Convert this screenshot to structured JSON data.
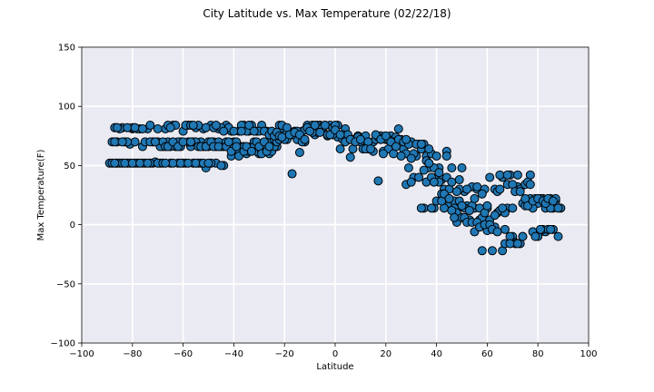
{
  "chart_data": {
    "type": "scatter",
    "title": "City Latitude vs. Max Temperature (02/22/18)",
    "xlabel": "Latitude",
    "ylabel": "Max Temperature(F)",
    "xlim": [
      -100,
      100
    ],
    "ylim": [
      -100,
      150
    ],
    "xticks": [
      -100,
      -80,
      -60,
      -40,
      -20,
      0,
      20,
      40,
      60,
      80,
      100
    ],
    "yticks": [
      -100,
      -50,
      0,
      50,
      100,
      150
    ],
    "grid": true,
    "legend": "none",
    "colors": {
      "marker_fill": "#1f77b4",
      "marker_edge": "#000000",
      "plot_background": "#eaeaf2",
      "grid": "#ffffff"
    },
    "points": [
      [
        -89,
        52
      ],
      [
        -88,
        70
      ],
      [
        -87,
        82
      ],
      [
        -86,
        52
      ],
      [
        -85,
        52
      ],
      [
        -84,
        82
      ],
      [
        -83,
        70
      ],
      [
        -82,
        52
      ],
      [
        -81,
        68
      ],
      [
        -80,
        81
      ],
      [
        -79,
        70
      ],
      [
        -78,
        52
      ],
      [
        -77,
        81
      ],
      [
        -76,
        66
      ],
      [
        -75,
        52
      ],
      [
        -74,
        81
      ],
      [
        -73,
        84
      ],
      [
        -72,
        52
      ],
      [
        -71,
        53
      ],
      [
        -70,
        70
      ],
      [
        -69,
        52
      ],
      [
        -68,
        66
      ],
      [
        -67,
        81
      ],
      [
        -66,
        70
      ],
      [
        -65,
        52
      ],
      [
        -64,
        84
      ],
      [
        -63,
        66
      ],
      [
        -62,
        52
      ],
      [
        -61,
        70
      ],
      [
        -60,
        79
      ],
      [
        -59,
        52
      ],
      [
        -58,
        84
      ],
      [
        -57,
        66
      ],
      [
        -56,
        70
      ],
      [
        -55,
        82
      ],
      [
        -54,
        52
      ],
      [
        -53,
        70
      ],
      [
        -52,
        81
      ],
      [
        -51,
        48
      ],
      [
        -50,
        66
      ],
      [
        -49,
        84
      ],
      [
        -48,
        70
      ],
      [
        -47,
        52
      ],
      [
        -46,
        81
      ],
      [
        -45,
        66
      ],
      [
        -44,
        50
      ],
      [
        -43,
        84
      ],
      [
        -42,
        66
      ],
      [
        -41,
        79
      ],
      [
        -40,
        70
      ],
      [
        -39,
        60
      ],
      [
        -38,
        79
      ],
      [
        -37,
        66
      ],
      [
        -36,
        84
      ],
      [
        -35,
        60
      ],
      [
        -34,
        79
      ],
      [
        -33,
        66
      ],
      [
        -32,
        70
      ],
      [
        -31,
        79
      ],
      [
        -30,
        60
      ],
      [
        -29,
        84
      ],
      [
        -28,
        66
      ],
      [
        -27,
        79
      ],
      [
        -26,
        60
      ],
      [
        -25,
        70
      ],
      [
        -24,
        72
      ],
      [
        -23,
        66
      ],
      [
        -22,
        84
      ],
      [
        -21,
        79
      ],
      [
        -20,
        75
      ],
      [
        -19,
        72
      ],
      [
        -18,
        78
      ],
      [
        -17,
        43
      ],
      [
        -16,
        79
      ],
      [
        -15,
        72
      ],
      [
        -14,
        61
      ],
      [
        -13,
        79
      ],
      [
        -12,
        70
      ],
      [
        -11,
        84
      ],
      [
        -10,
        79
      ],
      [
        -9,
        84
      ],
      [
        -8,
        76
      ],
      [
        -7,
        78
      ],
      [
        -6,
        84
      ],
      [
        -5,
        81
      ],
      [
        -4,
        84
      ],
      [
        -3,
        75
      ],
      [
        -2,
        84
      ],
      [
        -1,
        82
      ],
      [
        0,
        76
      ],
      [
        1,
        74
      ],
      [
        2,
        64
      ],
      [
        3,
        72
      ],
      [
        4,
        81
      ],
      [
        5,
        72
      ],
      [
        6,
        57
      ],
      [
        7,
        64
      ],
      [
        8,
        72
      ],
      [
        9,
        75
      ],
      [
        10,
        70
      ],
      [
        11,
        64
      ],
      [
        12,
        75
      ],
      [
        13,
        64
      ],
      [
        14,
        64
      ],
      [
        15,
        70
      ],
      [
        16,
        72
      ],
      [
        17,
        37
      ],
      [
        18,
        75
      ],
      [
        19,
        62
      ],
      [
        20,
        72
      ],
      [
        21,
        64
      ],
      [
        22,
        75
      ],
      [
        23,
        60
      ],
      [
        24,
        74
      ],
      [
        25,
        81
      ],
      [
        26,
        72
      ],
      [
        27,
        64
      ],
      [
        28,
        60
      ],
      [
        29,
        48
      ],
      [
        30,
        70
      ],
      [
        31,
        40
      ],
      [
        32,
        58
      ],
      [
        33,
        68
      ],
      [
        34,
        64
      ],
      [
        35,
        14
      ],
      [
        36,
        58
      ],
      [
        37,
        48
      ],
      [
        38,
        60
      ],
      [
        39,
        14
      ],
      [
        40,
        40
      ],
      [
        41,
        48
      ],
      [
        42,
        38
      ],
      [
        43,
        30
      ],
      [
        44,
        40
      ],
      [
        45,
        16
      ],
      [
        46,
        48
      ],
      [
        47,
        20
      ],
      [
        48,
        2
      ],
      [
        49,
        38
      ],
      [
        50,
        48
      ],
      [
        51,
        28
      ],
      [
        52,
        16
      ],
      [
        53,
        12
      ],
      [
        54,
        32
      ],
      [
        55,
        14
      ],
      [
        56,
        30
      ],
      [
        57,
        4
      ],
      [
        58,
        6
      ],
      [
        59,
        30
      ],
      [
        60,
        14
      ],
      [
        61,
        40
      ],
      [
        62,
        -2
      ],
      [
        63,
        30
      ],
      [
        64,
        10
      ],
      [
        65,
        12
      ],
      [
        66,
        40
      ],
      [
        67,
        -4
      ],
      [
        68,
        14
      ],
      [
        69,
        42
      ],
      [
        70,
        -10
      ],
      [
        71,
        -15
      ],
      [
        72,
        32
      ],
      [
        73,
        30
      ],
      [
        74,
        18
      ],
      [
        75,
        16
      ],
      [
        76,
        20
      ],
      [
        77,
        42
      ],
      [
        78,
        -6
      ],
      [
        79,
        20
      ],
      [
        80,
        18
      ],
      [
        81,
        -6
      ],
      [
        82,
        22
      ],
      [
        83,
        -6
      ],
      [
        84,
        16
      ],
      [
        85,
        22
      ],
      [
        86,
        14
      ],
      [
        87,
        20
      ],
      [
        88,
        -10
      ],
      [
        89,
        14
      ],
      [
        -10,
        80
      ],
      [
        -88,
        52
      ],
      [
        -86,
        70
      ],
      [
        -85,
        81
      ],
      [
        -84,
        52
      ],
      [
        -82,
        70
      ],
      [
        -81,
        52
      ],
      [
        -80,
        82
      ],
      [
        -79,
        52
      ],
      [
        -78,
        81
      ],
      [
        -76,
        52
      ],
      [
        -75,
        70
      ],
      [
        -73,
        52
      ],
      [
        -72,
        70
      ],
      [
        -70,
        52
      ],
      [
        -69,
        66
      ],
      [
        -68,
        70
      ],
      [
        -67,
        66
      ],
      [
        -66,
        84
      ],
      [
        -65,
        66
      ],
      [
        -64,
        52
      ],
      [
        -63,
        84
      ],
      [
        -62,
        70
      ],
      [
        -61,
        66
      ],
      [
        -60,
        52
      ],
      [
        -59,
        84
      ],
      [
        -58,
        70
      ],
      [
        -57,
        84
      ],
      [
        -56,
        52
      ],
      [
        -55,
        70
      ],
      [
        -54,
        84
      ],
      [
        -53,
        52
      ],
      [
        -52,
        66
      ],
      [
        -51,
        82
      ],
      [
        -50,
        70
      ],
      [
        -49,
        52
      ],
      [
        -48,
        82
      ],
      [
        -47,
        66
      ],
      [
        -46,
        70
      ],
      [
        -45,
        82
      ],
      [
        -44,
        66
      ],
      [
        -43,
        70
      ],
      [
        -42,
        82
      ],
      [
        -41,
        58
      ],
      [
        -40,
        66
      ],
      [
        -39,
        70
      ],
      [
        -38,
        62
      ],
      [
        -37,
        84
      ],
      [
        -36,
        66
      ],
      [
        -35,
        79
      ],
      [
        -34,
        62
      ],
      [
        -33,
        84
      ],
      [
        -32,
        66
      ],
      [
        -31,
        62
      ],
      [
        -30,
        79
      ],
      [
        -29,
        62
      ],
      [
        -28,
        79
      ],
      [
        -27,
        66
      ],
      [
        -26,
        76
      ],
      [
        -25,
        62
      ],
      [
        -24,
        66
      ],
      [
        -23,
        70
      ],
      [
        -22,
        72
      ],
      [
        -21,
        84
      ],
      [
        -20,
        72
      ],
      [
        -19,
        78
      ],
      [
        -17,
        76
      ],
      [
        -15,
        79
      ],
      [
        -13,
        70
      ],
      [
        -12,
        80
      ],
      [
        -11,
        82
      ],
      [
        -9,
        78
      ],
      [
        -7,
        84
      ],
      [
        -5,
        82
      ],
      [
        -3,
        76
      ],
      [
        -1,
        76
      ],
      [
        1,
        84
      ],
      [
        3,
        76
      ],
      [
        5,
        76
      ],
      [
        7,
        72
      ],
      [
        9,
        74
      ],
      [
        11,
        64
      ],
      [
        13,
        70
      ],
      [
        15,
        62
      ],
      [
        17,
        74
      ],
      [
        19,
        60
      ],
      [
        21,
        72
      ],
      [
        23,
        70
      ],
      [
        25,
        72
      ],
      [
        27,
        70
      ],
      [
        28,
        34
      ],
      [
        29,
        68
      ],
      [
        30,
        36
      ],
      [
        31,
        60
      ],
      [
        33,
        40
      ],
      [
        34,
        14
      ],
      [
        35,
        68
      ],
      [
        36,
        36
      ],
      [
        37,
        64
      ],
      [
        38,
        14
      ],
      [
        39,
        48
      ],
      [
        40,
        20
      ],
      [
        41,
        36
      ],
      [
        42,
        26
      ],
      [
        43,
        14
      ],
      [
        44,
        62
      ],
      [
        45,
        30
      ],
      [
        46,
        36
      ],
      [
        47,
        14
      ],
      [
        48,
        10
      ],
      [
        49,
        30
      ],
      [
        50,
        6
      ],
      [
        51,
        14
      ],
      [
        52,
        30
      ],
      [
        53,
        4
      ],
      [
        54,
        16
      ],
      [
        55,
        -6
      ],
      [
        56,
        32
      ],
      [
        57,
        14
      ],
      [
        58,
        -22
      ],
      [
        59,
        10
      ],
      [
        60,
        -5
      ],
      [
        61,
        4
      ],
      [
        62,
        -22
      ],
      [
        63,
        -2
      ],
      [
        64,
        28
      ],
      [
        65,
        42
      ],
      [
        66,
        -22
      ],
      [
        67,
        10
      ],
      [
        68,
        34
      ],
      [
        69,
        -10
      ],
      [
        70,
        14
      ],
      [
        71,
        -16
      ],
      [
        72,
        42
      ],
      [
        73,
        -16
      ],
      [
        74,
        -10
      ],
      [
        75,
        34
      ],
      [
        76,
        36
      ],
      [
        77,
        22
      ],
      [
        78,
        14
      ],
      [
        79,
        22
      ],
      [
        80,
        -10
      ],
      [
        81,
        22
      ],
      [
        82,
        -4
      ],
      [
        83,
        14
      ],
      [
        84,
        -4
      ],
      [
        85,
        14
      ],
      [
        86,
        -4
      ],
      [
        87,
        22
      ],
      [
        88,
        14
      ],
      [
        0,
        84
      ],
      [
        -87,
        52
      ],
      [
        -87,
        70
      ],
      [
        -86,
        82
      ],
      [
        -84,
        70
      ],
      [
        -83,
        52
      ],
      [
        -82,
        82
      ],
      [
        -80,
        52
      ],
      [
        -79,
        82
      ],
      [
        -77,
        52
      ],
      [
        -76,
        81
      ],
      [
        -74,
        52
      ],
      [
        -73,
        70
      ],
      [
        -71,
        70
      ],
      [
        -70,
        81
      ],
      [
        -68,
        52
      ],
      [
        -67,
        52
      ],
      [
        -66,
        66
      ],
      [
        -65,
        82
      ],
      [
        -64,
        70
      ],
      [
        -62,
        66
      ],
      [
        -61,
        52
      ],
      [
        -60,
        70
      ],
      [
        -58,
        52
      ],
      [
        -57,
        70
      ],
      [
        -56,
        84
      ],
      [
        -55,
        52
      ],
      [
        -54,
        66
      ],
      [
        -53,
        66
      ],
      [
        -52,
        52
      ],
      [
        -51,
        66
      ],
      [
        -50,
        52
      ],
      [
        -49,
        70
      ],
      [
        -48,
        66
      ],
      [
        -47,
        84
      ],
      [
        -46,
        66
      ],
      [
        -45,
        50
      ],
      [
        -44,
        79
      ],
      [
        -43,
        66
      ],
      [
        -42,
        70
      ],
      [
        -41,
        62
      ],
      [
        -40,
        79
      ],
      [
        -39,
        66
      ],
      [
        -38,
        58
      ],
      [
        -37,
        79
      ],
      [
        -36,
        62
      ],
      [
        -35,
        66
      ],
      [
        -34,
        84
      ],
      [
        -33,
        62
      ],
      [
        -32,
        79
      ],
      [
        -31,
        70
      ],
      [
        -30,
        66
      ],
      [
        -29,
        60
      ],
      [
        -28,
        70
      ],
      [
        -27,
        62
      ],
      [
        -26,
        66
      ],
      [
        -25,
        79
      ],
      [
        -24,
        75
      ],
      [
        -23,
        78
      ],
      [
        -22,
        75
      ],
      [
        -21,
        74
      ],
      [
        -19,
        82
      ],
      [
        -18,
        76
      ],
      [
        -16,
        78
      ],
      [
        -14,
        76
      ],
      [
        -12,
        72
      ],
      [
        -10,
        79
      ],
      [
        -8,
        84
      ],
      [
        -6,
        78
      ],
      [
        -4,
        84
      ],
      [
        -2,
        76
      ],
      [
        0,
        80
      ],
      [
        2,
        76
      ],
      [
        4,
        70
      ],
      [
        6,
        72
      ],
      [
        8,
        70
      ],
      [
        10,
        72
      ],
      [
        12,
        64
      ],
      [
        14,
        64
      ],
      [
        16,
        76
      ],
      [
        18,
        72
      ],
      [
        20,
        75
      ],
      [
        22,
        70
      ],
      [
        24,
        66
      ],
      [
        26,
        58
      ],
      [
        28,
        72
      ],
      [
        30,
        56
      ],
      [
        32,
        68
      ],
      [
        34,
        68
      ],
      [
        35,
        46
      ],
      [
        36,
        54
      ],
      [
        37,
        52
      ],
      [
        38,
        40
      ],
      [
        39,
        36
      ],
      [
        40,
        58
      ],
      [
        41,
        44
      ],
      [
        42,
        20
      ],
      [
        43,
        26
      ],
      [
        44,
        58
      ],
      [
        45,
        22
      ],
      [
        46,
        12
      ],
      [
        47,
        6
      ],
      [
        48,
        28
      ],
      [
        49,
        20
      ],
      [
        50,
        16
      ],
      [
        51,
        6
      ],
      [
        52,
        2
      ],
      [
        53,
        12
      ],
      [
        54,
        2
      ],
      [
        55,
        22
      ],
      [
        56,
        2
      ],
      [
        57,
        -2
      ],
      [
        58,
        26
      ],
      [
        59,
        0
      ],
      [
        60,
        16
      ],
      [
        61,
        0
      ],
      [
        62,
        -4
      ],
      [
        63,
        8
      ],
      [
        64,
        -6
      ],
      [
        65,
        30
      ],
      [
        66,
        14
      ],
      [
        67,
        -16
      ],
      [
        68,
        42
      ],
      [
        69,
        -16
      ],
      [
        70,
        34
      ],
      [
        71,
        28
      ],
      [
        72,
        -16
      ],
      [
        73,
        28
      ],
      [
        74,
        -10
      ],
      [
        75,
        22
      ],
      [
        76,
        16
      ],
      [
        77,
        34
      ],
      [
        78,
        20
      ],
      [
        79,
        -10
      ],
      [
        80,
        22
      ],
      [
        81,
        -4
      ],
      [
        82,
        20
      ],
      [
        83,
        18
      ],
      [
        84,
        22
      ],
      [
        85,
        -4
      ],
      [
        86,
        20
      ]
    ]
  }
}
